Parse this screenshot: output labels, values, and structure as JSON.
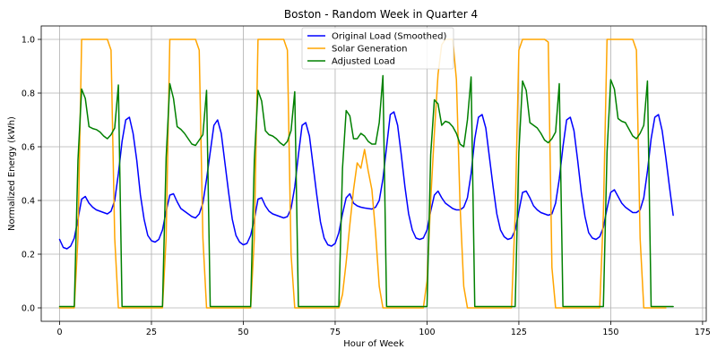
{
  "chart_data": {
    "type": "line",
    "title": "Boston - Random Week in Quarter 4",
    "xlabel": "Hour of Week",
    "ylabel": "Normalized Energy (kWh)",
    "xlim": [
      -5,
      176
    ],
    "ylim": [
      -0.05,
      1.05
    ],
    "xticks": [
      0,
      25,
      50,
      75,
      100,
      125,
      150,
      175
    ],
    "yticks": [
      0.0,
      0.2,
      0.4,
      0.6,
      0.8,
      1.0
    ],
    "xtick_labels": [
      "0",
      "25",
      "50",
      "75",
      "100",
      "125",
      "150",
      "175"
    ],
    "ytick_labels": [
      "0.0",
      "0.2",
      "0.4",
      "0.6",
      "0.8",
      "1.0"
    ],
    "grid": true,
    "legend_position": "top-center",
    "series": [
      {
        "name": "Original Load (Smoothed)",
        "color": "#0000ff",
        "values": [
          0.255,
          0.225,
          0.22,
          0.23,
          0.26,
          0.33,
          0.405,
          0.415,
          0.39,
          0.375,
          0.365,
          0.36,
          0.355,
          0.35,
          0.36,
          0.4,
          0.5,
          0.62,
          0.7,
          0.71,
          0.65,
          0.55,
          0.42,
          0.33,
          0.27,
          0.25,
          0.245,
          0.255,
          0.29,
          0.36,
          0.42,
          0.425,
          0.395,
          0.37,
          0.36,
          0.35,
          0.34,
          0.335,
          0.35,
          0.39,
          0.48,
          0.58,
          0.68,
          0.7,
          0.65,
          0.54,
          0.43,
          0.33,
          0.27,
          0.245,
          0.235,
          0.24,
          0.27,
          0.33,
          0.405,
          0.41,
          0.38,
          0.36,
          0.35,
          0.345,
          0.34,
          0.335,
          0.34,
          0.37,
          0.45,
          0.57,
          0.68,
          0.69,
          0.64,
          0.53,
          0.42,
          0.32,
          0.26,
          0.235,
          0.23,
          0.24,
          0.28,
          0.35,
          0.41,
          0.425,
          0.39,
          0.38,
          0.375,
          0.372,
          0.37,
          0.368,
          0.375,
          0.4,
          0.48,
          0.6,
          0.72,
          0.73,
          0.68,
          0.57,
          0.45,
          0.35,
          0.29,
          0.26,
          0.255,
          0.26,
          0.29,
          0.36,
          0.42,
          0.435,
          0.41,
          0.39,
          0.38,
          0.37,
          0.365,
          0.365,
          0.375,
          0.41,
          0.5,
          0.63,
          0.71,
          0.72,
          0.67,
          0.56,
          0.45,
          0.35,
          0.29,
          0.265,
          0.255,
          0.26,
          0.29,
          0.36,
          0.43,
          0.435,
          0.41,
          0.38,
          0.365,
          0.355,
          0.35,
          0.345,
          0.35,
          0.39,
          0.48,
          0.6,
          0.7,
          0.71,
          0.66,
          0.55,
          0.43,
          0.34,
          0.28,
          0.26,
          0.255,
          0.265,
          0.3,
          0.37,
          0.43,
          0.44,
          0.415,
          0.39,
          0.375,
          0.365,
          0.355,
          0.355,
          0.365,
          0.41,
          0.51,
          0.63,
          0.71,
          0.72,
          0.66,
          0.56,
          0.45,
          0.345
        ]
      },
      {
        "name": "Solar Generation",
        "color": "#ffa500",
        "values": [
          0,
          0,
          0,
          0,
          0,
          0.26,
          1.0,
          1.0,
          1.0,
          1.0,
          1.0,
          1.0,
          1.0,
          1.0,
          0.96,
          0.26,
          0,
          0,
          0,
          0,
          0,
          0,
          0,
          0,
          0,
          0,
          0,
          0,
          0,
          0.26,
          1.0,
          1.0,
          1.0,
          1.0,
          1.0,
          1.0,
          1.0,
          1.0,
          0.96,
          0.26,
          0,
          0,
          0,
          0,
          0,
          0,
          0,
          0,
          0,
          0,
          0,
          0,
          0,
          0.26,
          1.0,
          1.0,
          1.0,
          1.0,
          1.0,
          1.0,
          1.0,
          1.0,
          0.96,
          0.2,
          0,
          0,
          0,
          0,
          0,
          0,
          0,
          0,
          0,
          0,
          0,
          0,
          0,
          0.05,
          0.17,
          0.31,
          0.44,
          0.54,
          0.52,
          0.59,
          0.51,
          0.44,
          0.28,
          0.08,
          0,
          0,
          0,
          0,
          0,
          0,
          0,
          0,
          0,
          0,
          0,
          0,
          0.1,
          0.4,
          0.65,
          0.87,
          0.98,
          1.0,
          1.0,
          1.0,
          0.85,
          0.38,
          0.08,
          0,
          0,
          0,
          0,
          0,
          0,
          0,
          0,
          0,
          0,
          0,
          0,
          0,
          0.35,
          0.96,
          1.0,
          1.0,
          1.0,
          1.0,
          1.0,
          1.0,
          1.0,
          0.99,
          0.15,
          0,
          0,
          0,
          0,
          0,
          0,
          0,
          0,
          0,
          0,
          0,
          0,
          0,
          0.35,
          1.0,
          1.0,
          1.0,
          1.0,
          1.0,
          1.0,
          1.0,
          1.0,
          0.96,
          0.26,
          0,
          0,
          0,
          0,
          0,
          0,
          0
        ]
      },
      {
        "name": "Adjusted Load",
        "color": "#008000",
        "values": [
          0.005,
          0.005,
          0.005,
          0.005,
          0.005,
          0.55,
          0.815,
          0.78,
          0.675,
          0.668,
          0.664,
          0.655,
          0.64,
          0.63,
          0.645,
          0.67,
          0.83,
          0.005,
          0.005,
          0.005,
          0.005,
          0.005,
          0.005,
          0.005,
          0.005,
          0.005,
          0.005,
          0.005,
          0.005,
          0.56,
          0.835,
          0.78,
          0.675,
          0.665,
          0.65,
          0.63,
          0.61,
          0.605,
          0.625,
          0.645,
          0.81,
          0.005,
          0.005,
          0.005,
          0.005,
          0.005,
          0.005,
          0.005,
          0.005,
          0.005,
          0.005,
          0.005,
          0.005,
          0.55,
          0.81,
          0.77,
          0.66,
          0.645,
          0.64,
          0.63,
          0.615,
          0.605,
          0.62,
          0.66,
          0.805,
          0.005,
          0.005,
          0.005,
          0.005,
          0.005,
          0.005,
          0.005,
          0.005,
          0.005,
          0.005,
          0.005,
          0.005,
          0.52,
          0.735,
          0.715,
          0.63,
          0.63,
          0.65,
          0.64,
          0.62,
          0.61,
          0.61,
          0.69,
          0.865,
          0.005,
          0.005,
          0.005,
          0.005,
          0.005,
          0.005,
          0.005,
          0.005,
          0.005,
          0.005,
          0.005,
          0.005,
          0.57,
          0.775,
          0.76,
          0.68,
          0.695,
          0.69,
          0.675,
          0.65,
          0.61,
          0.6,
          0.7,
          0.86,
          0.005,
          0.005,
          0.005,
          0.005,
          0.005,
          0.005,
          0.005,
          0.005,
          0.005,
          0.005,
          0.005,
          0.005,
          0.58,
          0.845,
          0.81,
          0.69,
          0.68,
          0.67,
          0.65,
          0.625,
          0.615,
          0.63,
          0.655,
          0.835,
          0.005,
          0.005,
          0.005,
          0.005,
          0.005,
          0.005,
          0.005,
          0.005,
          0.005,
          0.005,
          0.005,
          0.005,
          0.58,
          0.85,
          0.815,
          0.705,
          0.695,
          0.69,
          0.665,
          0.64,
          0.63,
          0.65,
          0.68,
          0.845,
          0.005,
          0.005,
          0.005,
          0.005,
          0.005,
          0.005,
          0.005
        ]
      }
    ]
  }
}
